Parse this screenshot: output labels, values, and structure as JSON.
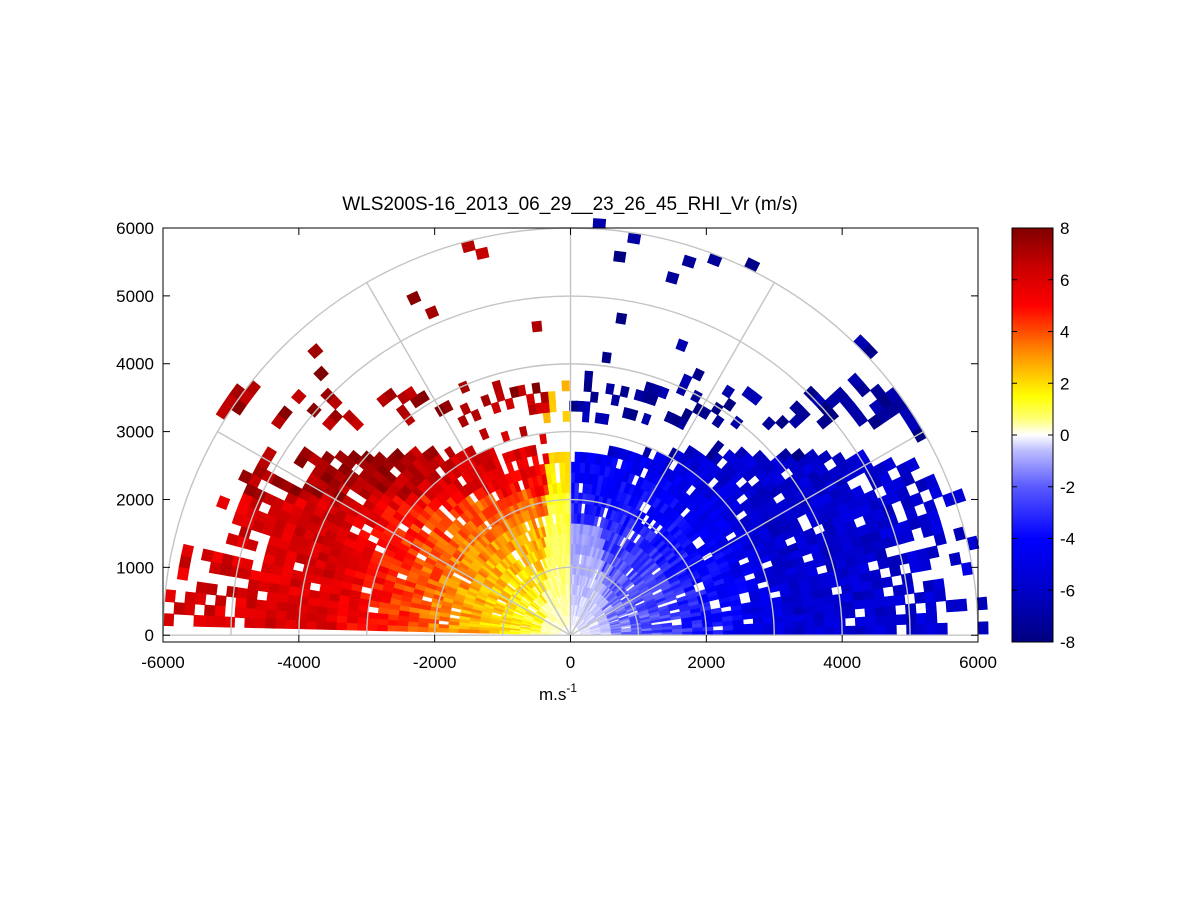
{
  "chart_data": {
    "type": "heatmap",
    "subtype": "polar-rhi-scan",
    "title": "WLS200S-16_2013_06_29__23_26_45_RHI_Vr (m/s)",
    "xlabel_base": "m.s",
    "xlabel_sup": "-1",
    "ylabel": "",
    "xlim": [
      -6000,
      6000
    ],
    "ylim": [
      -100,
      6000
    ],
    "x_ticks": [
      -6000,
      -4000,
      -2000,
      0,
      2000,
      4000,
      6000
    ],
    "x_tick_labels": [
      "-6000",
      "-4000",
      "-2000",
      "0",
      "2000",
      "4000",
      "6000"
    ],
    "y_ticks": [
      0,
      1000,
      2000,
      3000,
      4000,
      5000,
      6000
    ],
    "y_tick_labels": [
      "0",
      "1000",
      "2000",
      "3000",
      "4000",
      "5000",
      "6000"
    ],
    "polar_grid": {
      "range_rings": [
        1000,
        2000,
        3000,
        4000,
        5000,
        6000
      ],
      "spokes_deg": [
        0,
        30,
        60,
        90,
        120,
        150,
        180
      ]
    },
    "colorbar": {
      "min": -8,
      "max": 8,
      "ticks": [
        8,
        6,
        4,
        2,
        0,
        -2,
        -4,
        -6,
        -8
      ],
      "tick_labels": [
        "8",
        "6",
        "4",
        "2",
        "0",
        "-2",
        "-4",
        "-6",
        "-8"
      ],
      "colormap": [
        [
          -8,
          "#00007f"
        ],
        [
          -6,
          "#0000c8"
        ],
        [
          -4,
          "#0000ff"
        ],
        [
          -2,
          "#5a5aff"
        ],
        [
          -0.6,
          "#bdbdff"
        ],
        [
          0,
          "#ffffff"
        ],
        [
          0.6,
          "#ffff7a"
        ],
        [
          1.5,
          "#ffff00"
        ],
        [
          3,
          "#ff9900"
        ],
        [
          5,
          "#ff0000"
        ],
        [
          6.5,
          "#c80000"
        ],
        [
          8,
          "#7f0000"
        ]
      ]
    },
    "data_description": {
      "scan_range_m": [
        0,
        6000
      ],
      "elevation_deg": [
        0,
        180
      ],
      "west_side_velocity_ms": [
        0,
        8
      ],
      "east_side_velocity_ms": [
        -8,
        0
      ],
      "dense_returns_below_height_m": 2700
    }
  }
}
